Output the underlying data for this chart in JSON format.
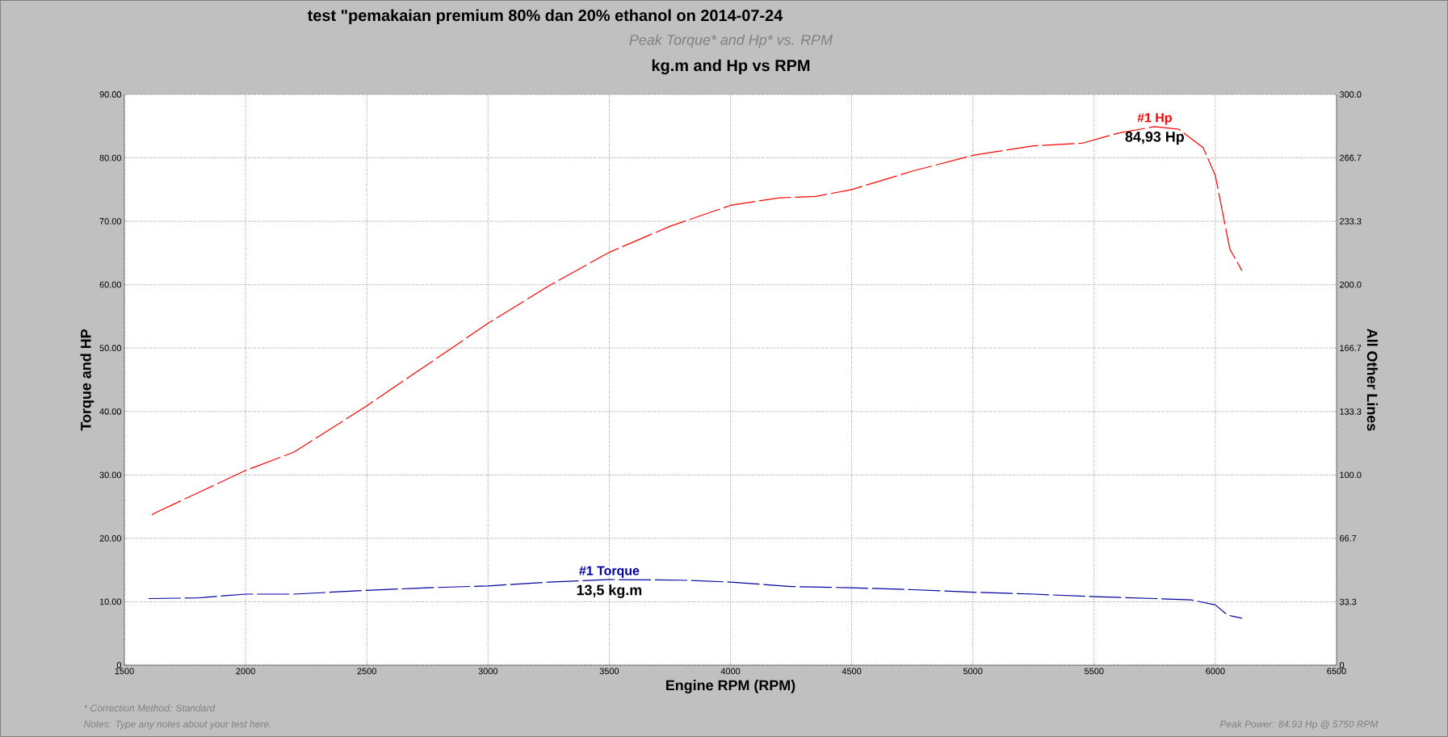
{
  "chart_data": {
    "type": "line",
    "title": "test \"pemakaian premium 80% dan 20% ethanol on 2014-07-24",
    "subtitle": "Peak Torque* and Hp* vs. RPM",
    "xlabel": "Engine RPM (RPM)",
    "ylabel": "Torque and HP",
    "y2label": "All Other Lines",
    "series": [
      {
        "name": "#1 Hp",
        "color": "#ff0000",
        "x": [
          1614,
          1626,
          2000,
          2200,
          2500,
          2750,
          3000,
          3250,
          3500,
          3750,
          4000,
          4200,
          4350,
          4500,
          4750,
          5000,
          5250,
          5450,
          5600,
          5750,
          5850,
          5950,
          6000,
          6030,
          6060,
          6110
        ],
        "values": [
          23.7,
          24.0,
          30.7,
          33.6,
          40.9,
          47.4,
          53.9,
          59.8,
          65.1,
          69.2,
          72.5,
          73.7,
          73.9,
          75.0,
          77.9,
          80.4,
          81.9,
          82.3,
          83.9,
          84.93,
          84.5,
          81.6,
          77.2,
          71.4,
          65.6,
          62.2
        ]
      },
      {
        "name": "#1 Torque",
        "color": "#0000a0",
        "x": [
          1600,
          1800,
          2000,
          2200,
          2500,
          2750,
          3000,
          3250,
          3500,
          3800,
          4000,
          4250,
          4500,
          4750,
          5000,
          5250,
          5500,
          5750,
          5900,
          6000,
          6050,
          6110
        ],
        "values": [
          10.5,
          10.6,
          11.2,
          11.2,
          11.8,
          12.2,
          12.5,
          13.1,
          13.5,
          13.4,
          13.1,
          12.4,
          12.2,
          11.9,
          11.5,
          11.2,
          10.8,
          10.5,
          10.3,
          9.5,
          7.9,
          7.4
        ]
      }
    ],
    "annotations": [
      "kg.m and Hp vs RPM",
      {
        "text": "84,93 Hp",
        "x": 5750,
        "y": 84.93
      },
      {
        "text": "13,5 kg.m",
        "x": 3500,
        "y": 13.5
      },
      "* Correction Method: Standard",
      "Notes: Type any notes about your test here.",
      "Peak Power: 84.93 Hp @ 5750 RPM"
    ],
    "xlim": [
      1500,
      6500
    ],
    "xticks": [
      1500,
      2000,
      2500,
      3000,
      3500,
      4000,
      4500,
      5000,
      5500,
      6000,
      6500
    ],
    "ylim": [
      0,
      90
    ],
    "yticks": [
      0,
      {
        "value": 10,
        "label": "10.00"
      },
      {
        "value": 20,
        "label": "20.00"
      },
      {
        "value": 30,
        "label": "30.00"
      },
      {
        "value": 40,
        "label": "40.00"
      },
      {
        "value": 50,
        "label": "50.00"
      },
      {
        "value": 60,
        "label": "60.00"
      },
      {
        "value": 70,
        "label": "70.00"
      },
      {
        "value": 80,
        "label": "80.00"
      },
      {
        "value": 90,
        "label": "90.00"
      }
    ],
    "y2lim": [
      0,
      300
    ],
    "y2ticks": [
      0,
      {
        "value": 33.3,
        "label": "33.3"
      },
      {
        "value": 66.7,
        "label": "66.7"
      },
      {
        "value": 100,
        "label": "100.0"
      },
      {
        "value": 133.3,
        "label": "133.3"
      },
      {
        "value": 166.7,
        "label": "166.7"
      },
      {
        "value": 200,
        "label": "200.0"
      },
      {
        "value": 233.3,
        "label": "233.3"
      },
      {
        "value": 266.7,
        "label": "266.7"
      },
      {
        "value": 300,
        "label": "300.0"
      }
    ],
    "grid": true,
    "marker": "none",
    "line_style": "dashed",
    "legend": false
  }
}
